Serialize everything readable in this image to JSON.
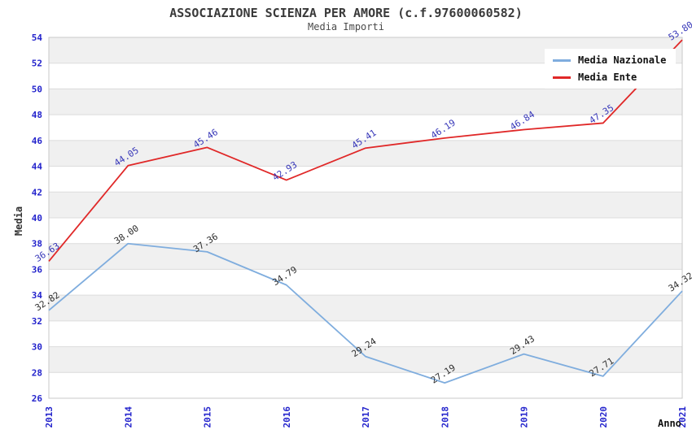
{
  "header": {
    "title": "ASSOCIAZIONE SCIENZA PER AMORE (c.f.97600060582)",
    "subtitle": "Media Importi"
  },
  "axes": {
    "x_title": "Anno",
    "y_title": "Media"
  },
  "legend": {
    "items": [
      {
        "label": "Media Nazionale",
        "color": "#7fadde"
      },
      {
        "label": "Media Ente",
        "color": "#e02828"
      }
    ]
  },
  "chart_data": {
    "type": "line",
    "title": "ASSOCIAZIONE SCIENZA PER AMORE (c.f.97600060582)",
    "subtitle": "Media Importi",
    "xlabel": "Anno",
    "ylabel": "Media",
    "x": [
      "2013",
      "2014",
      "2015",
      "2016",
      "2017",
      "2018",
      "2019",
      "2020",
      "2021"
    ],
    "series": [
      {
        "name": "Media Nazionale",
        "color": "#7fadde",
        "label_color": "#2e2e2e",
        "values": [
          32.82,
          38.0,
          37.36,
          34.79,
          29.24,
          27.19,
          29.43,
          27.71,
          34.32
        ]
      },
      {
        "name": "Media Ente",
        "color": "#e02828",
        "label_color": "#3636b8",
        "values": [
          36.63,
          44.05,
          45.46,
          42.93,
          45.41,
          46.19,
          46.84,
          47.35,
          53.8
        ]
      }
    ],
    "ylim": [
      26,
      54
    ],
    "ytick_step": 2,
    "grid": "horizontal-bands",
    "band_color": "#f0f0f0",
    "band_alt_color": "#ffffff",
    "gridline_color": "#dcdcdc",
    "border_color": "#c8c8c8",
    "tick_label_color": "#2424cc",
    "legend_position": "top-right",
    "data_labels": "two-decimals-rotated"
  }
}
